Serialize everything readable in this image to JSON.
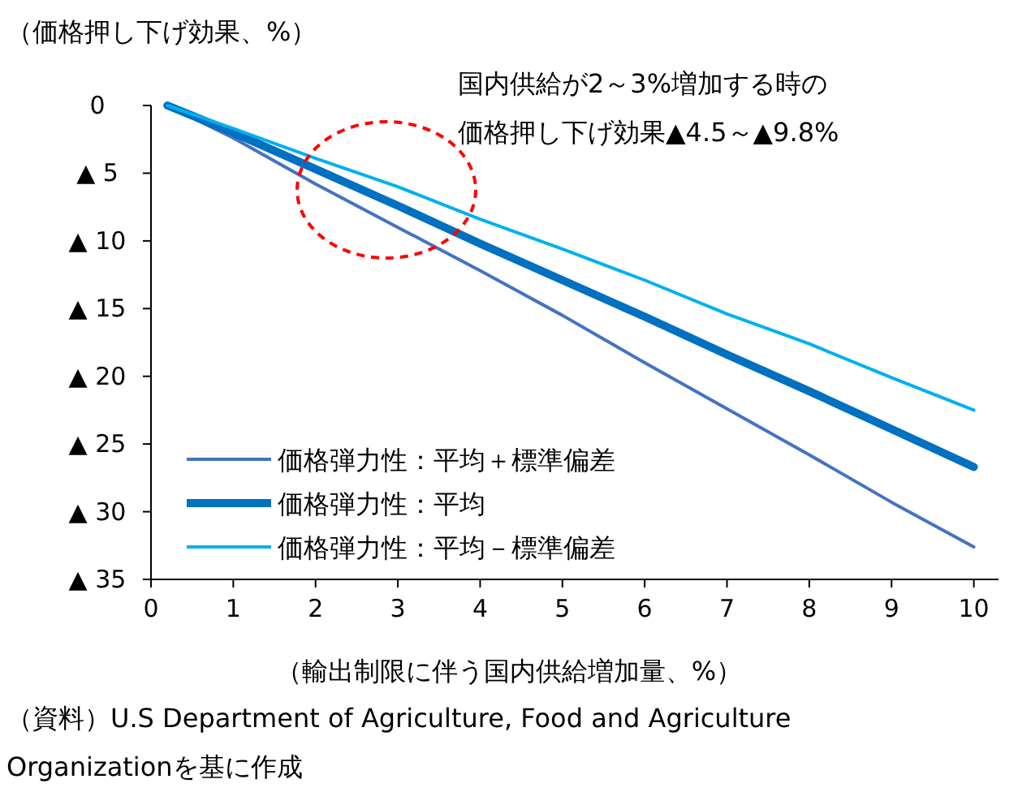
{
  "chart_data": {
    "type": "line",
    "subtitle": "（価格押し下げ効果、%）",
    "xlabel": "（輸出制限に伴う国内供給増加量、%）",
    "annotations": [
      "国内供給が2～3%増加する時の",
      "価格押し下げ効果▲4.5～▲9.8%",
      "（資料）U.S Department of Agriculture,  Food and Agriculture Organizationを基に作成"
    ],
    "xlim": [
      0,
      10.3
    ],
    "xticks": [
      0,
      1,
      2,
      3,
      4,
      5,
      6,
      7,
      8,
      9,
      10
    ],
    "ylim": [
      35,
      0
    ],
    "yticks": [
      0,
      {
        "value": 5,
        "label": "▲ 5"
      },
      {
        "value": 10,
        "label": "▲ 10"
      },
      {
        "value": 15,
        "label": "▲ 15"
      },
      {
        "value": 20,
        "label": "▲ 20"
      },
      {
        "value": 25,
        "label": "▲ 25"
      },
      {
        "value": 30,
        "label": "▲ 30"
      },
      {
        "value": 35,
        "label": "▲ 35"
      }
    ],
    "grid": false,
    "legend": "bottom left",
    "line_style": "solid",
    "series": [
      {
        "name": "価格弾力性：平均＋標準偏差",
        "color": "#4472c4",
        "x": [
          0.2,
          1,
          2,
          3,
          4,
          5,
          6,
          7,
          8,
          9,
          10
        ],
        "values": [
          0,
          2.4,
          5.8,
          9.0,
          12.2,
          15.5,
          19.0,
          22.4,
          25.8,
          29.3,
          32.6
        ]
      },
      {
        "name": "価格弾力性：平均",
        "color": "#0070c0",
        "x": [
          0.2,
          1,
          2,
          3,
          4,
          5,
          6,
          7,
          8,
          9,
          10
        ],
        "values": [
          0,
          2.0,
          4.7,
          7.4,
          10.2,
          12.9,
          15.6,
          18.4,
          21.1,
          23.9,
          26.7
        ]
      },
      {
        "name": "価格弾力性：平均－標準偏差",
        "color": "#00b0f0",
        "x": [
          0.2,
          1,
          2,
          3,
          4,
          5,
          6,
          7,
          8,
          9,
          10
        ],
        "values": [
          0,
          1.7,
          3.9,
          6.0,
          8.4,
          10.6,
          12.9,
          15.4,
          17.6,
          20.1,
          22.5
        ]
      }
    ]
  }
}
